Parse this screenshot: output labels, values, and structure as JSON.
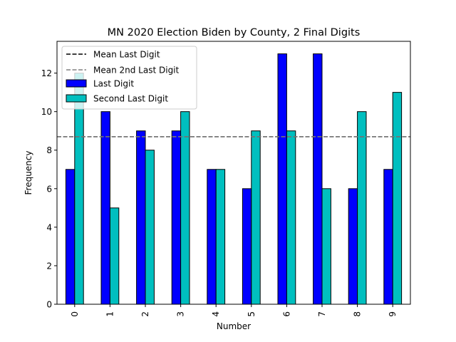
{
  "chart_data": {
    "type": "bar",
    "title": "MN 2020 Election Biden by County, 2 Final Digits",
    "xlabel": "Number",
    "ylabel": "Frequency",
    "categories": [
      "0",
      "1",
      "2",
      "3",
      "4",
      "5",
      "6",
      "7",
      "8",
      "9"
    ],
    "series": [
      {
        "name": "Last Digit",
        "values": [
          7,
          10,
          9,
          9,
          7,
          6,
          13,
          13,
          6,
          7
        ],
        "color": "#0000ff"
      },
      {
        "name": "Second Last Digit",
        "values": [
          12,
          5,
          8,
          10,
          7,
          9,
          9,
          6,
          10,
          11
        ],
        "color": "#00bfbf"
      }
    ],
    "reference_lines": [
      {
        "name": "Mean Last Digit",
        "value": 8.7,
        "color": "#000000",
        "style": "dashed"
      },
      {
        "name": "Mean 2nd Last Digit",
        "value": 8.7,
        "color": "#808080",
        "style": "dashed"
      }
    ],
    "ylim": [
      0,
      13.65
    ],
    "yticks": [
      0,
      2,
      4,
      6,
      8,
      10,
      12
    ],
    "grid": false,
    "legend_position": "top-left"
  }
}
